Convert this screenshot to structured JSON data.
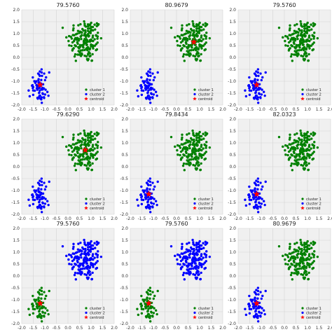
{
  "colors": {
    "panel_bg": "#f0f0f0",
    "grid": "#d4d4d4",
    "green": "#008000",
    "blue": "#0000ff",
    "centroid": "#ff0000"
  },
  "legend_labels": [
    "cluster 1",
    "cluster 2",
    "centroid"
  ],
  "chart_data": [
    {
      "type": "scatter",
      "title": "79.5760",
      "big_cluster_color": "green",
      "small_cluster_color": "blue",
      "xlim": [
        -2.0,
        2.0
      ],
      "ylim": [
        -2.0,
        2.0
      ],
      "centroid": [
        -1.2,
        -1.15
      ],
      "legend": "lower-right",
      "grid": true
    },
    {
      "type": "scatter",
      "title": "80.9679",
      "big_cluster_color": "green",
      "small_cluster_color": "blue",
      "xlim": [
        -2.0,
        2.0
      ],
      "ylim": [
        -2.0,
        2.0
      ],
      "centroid": [
        0.75,
        0.65
      ],
      "legend": "lower-right",
      "grid": true
    },
    {
      "type": "scatter",
      "title": "79.5760",
      "big_cluster_color": "green",
      "small_cluster_color": "blue",
      "xlim": [
        -2.0,
        2.0
      ],
      "ylim": [
        -2.0,
        2.0
      ],
      "centroid": [
        -1.2,
        -1.15
      ],
      "legend": "lower-right",
      "grid": true
    },
    {
      "type": "scatter",
      "title": "79.6290",
      "big_cluster_color": "green",
      "small_cluster_color": "blue",
      "xlim": [
        -2.0,
        2.0
      ],
      "ylim": [
        -2.0,
        2.0
      ],
      "centroid": [
        0.75,
        0.7
      ],
      "legend": "lower-right",
      "grid": true
    },
    {
      "type": "scatter",
      "title": "79.8434",
      "big_cluster_color": "green",
      "small_cluster_color": "blue",
      "xlim": [
        -2.0,
        2.0
      ],
      "ylim": [
        -2.0,
        2.0
      ],
      "centroid": [
        -1.2,
        -1.15
      ],
      "legend": "lower-right",
      "grid": true
    },
    {
      "type": "scatter",
      "title": "82.0323",
      "big_cluster_color": "green",
      "small_cluster_color": "blue",
      "xlim": [
        -2.0,
        2.0
      ],
      "ylim": [
        -2.0,
        2.0
      ],
      "centroid": [
        -1.2,
        -1.15
      ],
      "legend": "lower-right",
      "grid": true
    },
    {
      "type": "scatter",
      "title": "79.5760",
      "big_cluster_color": "blue",
      "small_cluster_color": "green",
      "xlim": [
        -2.0,
        2.0
      ],
      "ylim": [
        -2.0,
        2.0
      ],
      "centroid": [
        -1.2,
        -1.15
      ],
      "legend": "lower-right",
      "grid": true
    },
    {
      "type": "scatter",
      "title": "79.5760",
      "big_cluster_color": "blue",
      "small_cluster_color": "green",
      "xlim": [
        -2.0,
        2.0
      ],
      "ylim": [
        -2.0,
        2.0
      ],
      "centroid": [
        -1.2,
        -1.15
      ],
      "legend": "lower-right",
      "grid": true
    },
    {
      "type": "scatter",
      "title": "80.9679",
      "big_cluster_color": "green",
      "small_cluster_color": "blue",
      "xlim": [
        -2.0,
        2.0
      ],
      "ylim": [
        -2.0,
        2.0
      ],
      "centroid": [
        -1.2,
        -1.15
      ],
      "legend": "lower-right",
      "grid": true
    }
  ],
  "x_ticks": [
    "-2.0",
    "-1.5",
    "-1.0",
    "-0.5",
    "0.0",
    "0.5",
    "1.0",
    "1.5",
    "2.0"
  ],
  "y_ticks": [
    "2.0",
    "1.5",
    "1.0",
    "0.5",
    "0.0",
    "-0.5",
    "-1.0",
    "-1.5",
    "-2.0"
  ]
}
